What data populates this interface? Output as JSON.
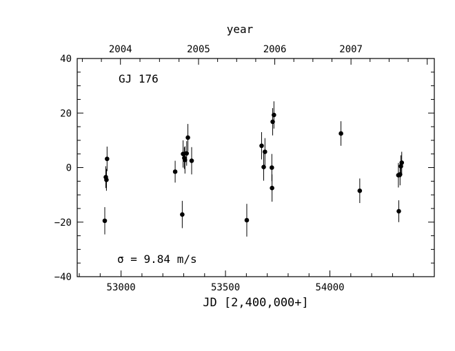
{
  "chart_data": {
    "type": "scatter",
    "title": "",
    "xlabel": "JD [2,400,000+]",
    "ylabel": "",
    "top_axis_label": "year",
    "annotation_star": "GJ 176",
    "annotation_sigma": "σ = 9.84 m/s",
    "xlim": [
      52790,
      54500
    ],
    "ylim": [
      -40,
      40
    ],
    "x_ticks": [
      53000,
      53500,
      54000
    ],
    "x_tick_labels": [
      "53000",
      "53500",
      "54000"
    ],
    "y_ticks": [
      -40,
      -20,
      0,
      20,
      40
    ],
    "y_tick_labels": [
      "−40",
      "−20",
      "0",
      "20",
      "40"
    ],
    "top_ticks": [
      52997,
      53371,
      53736,
      54101,
      54466
    ],
    "top_tick_labels": [
      "2004",
      "2005",
      "2006",
      "2007",
      ""
    ],
    "grid": false,
    "points": [
      {
        "x": 52922,
        "y": -19.5,
        "err": 5
      },
      {
        "x": 52927,
        "y": -3.5,
        "err": 4
      },
      {
        "x": 52930,
        "y": -4.5,
        "err": 4
      },
      {
        "x": 52933,
        "y": 3.2,
        "err": 4.5
      },
      {
        "x": 53259,
        "y": -1.5,
        "err": 4
      },
      {
        "x": 53293,
        "y": -17.2,
        "err": 5
      },
      {
        "x": 53297,
        "y": 5.0,
        "err": 5
      },
      {
        "x": 53303,
        "y": 3.5,
        "err": 4
      },
      {
        "x": 53306,
        "y": 2.8,
        "err": 5
      },
      {
        "x": 53314,
        "y": 5.2,
        "err": 4.5
      },
      {
        "x": 53320,
        "y": 11.0,
        "err": 5
      },
      {
        "x": 53338,
        "y": 2.5,
        "err": 5
      },
      {
        "x": 53602,
        "y": -19.3,
        "err": 6
      },
      {
        "x": 53673,
        "y": 8.0,
        "err": 5
      },
      {
        "x": 53683,
        "y": 0.2,
        "err": 5
      },
      {
        "x": 53689,
        "y": 5.8,
        "err": 5
      },
      {
        "x": 53722,
        "y": 0.0,
        "err": 5
      },
      {
        "x": 53723,
        "y": -7.5,
        "err": 5
      },
      {
        "x": 53726,
        "y": 16.8,
        "err": 5
      },
      {
        "x": 53732,
        "y": 19.3,
        "err": 5
      },
      {
        "x": 54053,
        "y": 12.5,
        "err": 4.5
      },
      {
        "x": 54143,
        "y": -8.5,
        "err": 4.5
      },
      {
        "x": 54328,
        "y": -2.8,
        "err": 4.5
      },
      {
        "x": 54330,
        "y": -16.0,
        "err": 4
      },
      {
        "x": 54336,
        "y": -2.5,
        "err": 4
      },
      {
        "x": 54340,
        "y": 0.5,
        "err": 4
      },
      {
        "x": 54344,
        "y": 1.8,
        "err": 4
      }
    ]
  }
}
